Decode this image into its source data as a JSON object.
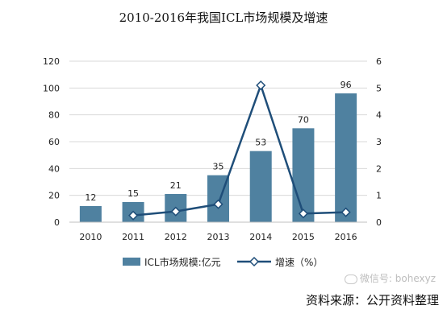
{
  "chart_data": {
    "type": "bar",
    "title": "2010-2016年我国ICL市场规模及增速",
    "categories": [
      "2010",
      "2011",
      "2012",
      "2013",
      "2014",
      "2015",
      "2016"
    ],
    "series": [
      {
        "name": "ICL市场规模:亿元",
        "type": "bar",
        "axis": "left",
        "values": [
          12,
          15,
          21,
          35,
          53,
          70,
          96
        ],
        "color": "#4f81a0"
      },
      {
        "name": "增速（%）",
        "type": "line",
        "axis": "right",
        "values": [
          null,
          0.25,
          0.4,
          0.67,
          5.1,
          0.32,
          0.37
        ],
        "color": "#1f4e79"
      }
    ],
    "ylim_left": [
      0,
      120
    ],
    "yticks_left": [
      0,
      20,
      40,
      60,
      80,
      100,
      120
    ],
    "ylim_right": [
      0,
      6
    ],
    "yticks_right": [
      0,
      1,
      2,
      3,
      4,
      5,
      6
    ],
    "grid": true,
    "legend_position": "bottom"
  },
  "watermark": "微信号: bohexyz",
  "source_text": "资料来源：公开资料整理"
}
